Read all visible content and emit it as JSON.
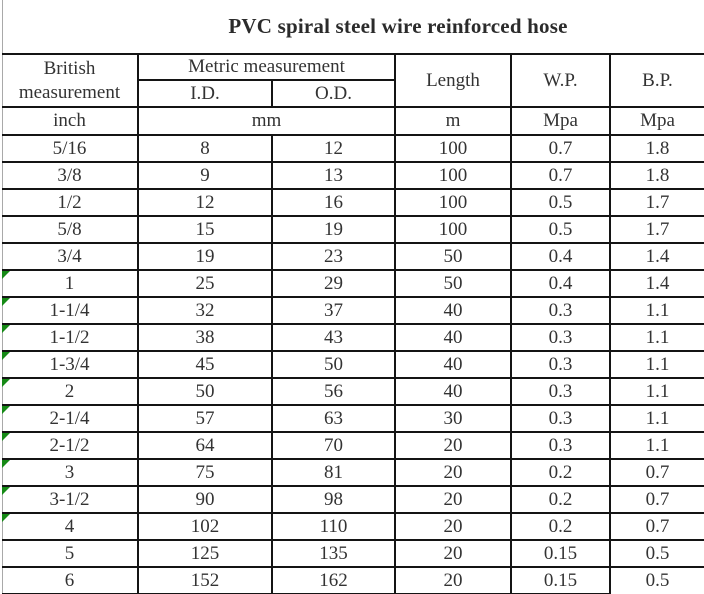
{
  "title": "PVC spiral steel wire reinforced hose",
  "colors": {
    "background": "#ffffff",
    "border": "#141414",
    "text": "#333333",
    "title_text": "#2b2b2b",
    "gridline": "#a9a9a9",
    "marker": "#168a16"
  },
  "header": {
    "british": "British measurement",
    "metric": "Metric measurement",
    "id": "I.D.",
    "od": "O.D.",
    "length": "Length",
    "wp": "W.P.",
    "bp": "B.P."
  },
  "units": {
    "inch": "inch",
    "mm": "mm",
    "m": "m",
    "wp_unit": "Mpa",
    "bp_unit": "Mpa"
  },
  "table": {
    "columns": [
      "inch",
      "id",
      "od",
      "length",
      "wp",
      "bp"
    ],
    "rows": [
      {
        "inch": "5/16",
        "id": "8",
        "od": "12",
        "length": "100",
        "wp": "0.7",
        "bp": "1.8",
        "flag": false
      },
      {
        "inch": "3/8",
        "id": "9",
        "od": "13",
        "length": "100",
        "wp": "0.7",
        "bp": "1.8",
        "flag": false
      },
      {
        "inch": "1/2",
        "id": "12",
        "od": "16",
        "length": "100",
        "wp": "0.5",
        "bp": "1.7",
        "flag": false
      },
      {
        "inch": "5/8",
        "id": "15",
        "od": "19",
        "length": "100",
        "wp": "0.5",
        "bp": "1.7",
        "flag": false
      },
      {
        "inch": "3/4",
        "id": "19",
        "od": "23",
        "length": "50",
        "wp": "0.4",
        "bp": "1.4",
        "flag": false
      },
      {
        "inch": "1",
        "id": "25",
        "od": "29",
        "length": "50",
        "wp": "0.4",
        "bp": "1.4",
        "flag": true
      },
      {
        "inch": "1-1/4",
        "id": "32",
        "od": "37",
        "length": "40",
        "wp": "0.3",
        "bp": "1.1",
        "flag": true
      },
      {
        "inch": "1-1/2",
        "id": "38",
        "od": "43",
        "length": "40",
        "wp": "0.3",
        "bp": "1.1",
        "flag": true
      },
      {
        "inch": "1-3/4",
        "id": "45",
        "od": "50",
        "length": "40",
        "wp": "0.3",
        "bp": "1.1",
        "flag": true
      },
      {
        "inch": "2",
        "id": "50",
        "od": "56",
        "length": "40",
        "wp": "0.3",
        "bp": "1.1",
        "flag": true
      },
      {
        "inch": "2-1/4",
        "id": "57",
        "od": "63",
        "length": "30",
        "wp": "0.3",
        "bp": "1.1",
        "flag": true
      },
      {
        "inch": "2-1/2",
        "id": "64",
        "od": "70",
        "length": "20",
        "wp": "0.3",
        "bp": "1.1",
        "flag": true
      },
      {
        "inch": "3",
        "id": "75",
        "od": "81",
        "length": "20",
        "wp": "0.2",
        "bp": "0.7",
        "flag": true
      },
      {
        "inch": "3-1/2",
        "id": "90",
        "od": "98",
        "length": "20",
        "wp": "0.2",
        "bp": "0.7",
        "flag": true
      },
      {
        "inch": "4",
        "id": "102",
        "od": "110",
        "length": "20",
        "wp": "0.2",
        "bp": "0.7",
        "flag": true
      },
      {
        "inch": "5",
        "id": "125",
        "od": "135",
        "length": "20",
        "wp": "0.15",
        "bp": "0.5",
        "flag": false
      },
      {
        "inch": "6",
        "id": "152",
        "od": "162",
        "length": "20",
        "wp": "0.15",
        "bp": "0.5",
        "flag": false
      }
    ]
  }
}
